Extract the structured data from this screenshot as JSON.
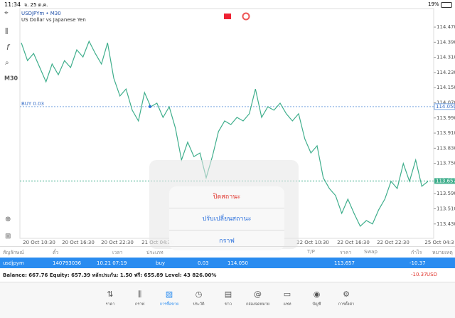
{
  "status_bar": {
    "time": "11:34",
    "date": "จ. 25 ต.ค.",
    "battery": "19%"
  },
  "chart": {
    "type": "line",
    "symbol": "USDJPYm • M30",
    "description": "US Dollar vs Japanese Yen",
    "timeframe": "M30",
    "color": "#3fae8c",
    "ylim": [
      113.354,
      114.568
    ],
    "yticks": [
      {
        "value": 114.47,
        "label": "114.470"
      },
      {
        "value": 114.39,
        "label": "114.390"
      },
      {
        "value": 114.31,
        "label": "114.310"
      },
      {
        "value": 114.23,
        "label": "114.230"
      },
      {
        "value": 114.15,
        "label": "114.150"
      },
      {
        "value": 114.07,
        "label": "114.070"
      },
      {
        "value": 113.99,
        "label": "113.990"
      },
      {
        "value": 113.91,
        "label": "113.910"
      },
      {
        "value": 113.83,
        "label": "113.830"
      },
      {
        "value": 113.75,
        "label": "113.750"
      },
      {
        "value": 113.59,
        "label": "113.590"
      },
      {
        "value": 113.51,
        "label": "113.510"
      },
      {
        "value": 113.43,
        "label": "113.430"
      }
    ],
    "xlabels": [
      "20 Oct 10:30",
      "20 Oct 16:30",
      "20 Oct 22:30",
      "21 Oct 04:30",
      "22 Oct 10:30",
      "22 Oct 16:30",
      "22 Oct 22:30",
      "25 Oct 04:3"
    ],
    "buy_line": {
      "label": "BUY 0.03",
      "value": 114.05,
      "value_label": "114.050"
    },
    "bid_line": {
      "value": 113.657,
      "value_label": "113.657"
    },
    "values": [
      114.387,
      114.293,
      114.331,
      114.256,
      114.181,
      114.275,
      114.218,
      114.293,
      114.256,
      114.35,
      114.312,
      114.395,
      114.331,
      114.275,
      114.387,
      114.2,
      114.106,
      114.143,
      114.031,
      113.974,
      114.124,
      114.049,
      114.068,
      113.993,
      114.049,
      113.937,
      113.768,
      113.862,
      113.786,
      113.805,
      113.674,
      113.786,
      113.918,
      113.974,
      113.955,
      113.993,
      113.974,
      114.012,
      114.143,
      113.993,
      114.049,
      114.031,
      114.068,
      114.012,
      113.974,
      114.012,
      113.88,
      113.805,
      113.843,
      113.674,
      113.617,
      113.58,
      113.486,
      113.561,
      113.486,
      113.418,
      113.448,
      113.43,
      113.505,
      113.561,
      113.655,
      113.617,
      113.749,
      113.655,
      113.768,
      113.629,
      113.655
    ]
  },
  "popup": {
    "items": [
      "ปิดสถานะ",
      "ปรับเปลี่ยนสถานะ",
      "กราฟ"
    ]
  },
  "table": {
    "headers": [
      "สัญลักษณ์",
      "ตั๋ว",
      "เวลา",
      "ประเภท",
      "T/P",
      "ราคา",
      "Swap",
      "กำไร",
      "หมายเหตุ"
    ],
    "row": [
      "usdjpym",
      "140793036",
      "10.21 07:19",
      "buy",
      "0.03",
      "114.050",
      "113.657",
      "-10.37"
    ],
    "balance": "Balance: 667.76 Equity: 657.39 หลักประกัน: 1.50 ฟรี: 655.89 Level: 43 826.00%",
    "total": "-10.37",
    "currency": "USD"
  },
  "tabs": [
    "ราคา",
    "กราฟ",
    "การซื้อขาย",
    "ประวัติ",
    "ข่าว",
    "กล่องจดหมาย",
    "แชท",
    "บัญชี",
    "การตั้งค่า"
  ]
}
